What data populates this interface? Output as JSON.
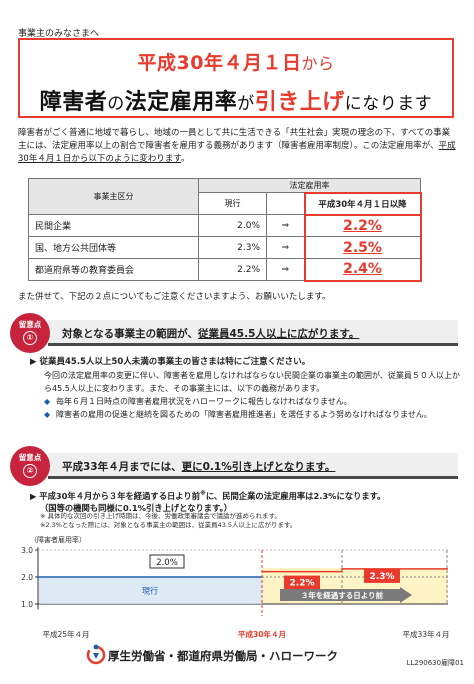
{
  "greeting": "事業主のみなさまへ",
  "title": {
    "line1_bold": "平成30年４月１日",
    "line1_rest": "から",
    "line2_a": "障害者",
    "line2_b": "の",
    "line2_c": "法定雇用率",
    "line2_d": "が",
    "line2_e": "引き上げ",
    "line2_f": "になります"
  },
  "intro": {
    "text1": "障害者がごく普通に地域で暮らし、地域の一員として共に生活できる「共生社会」実現の理念の下、すべての事業主には、法定雇用率以上の割合で障害者を雇用する義務があります（障害者雇用率制度）。この法定雇用率が、",
    "text_underlined": "平成30年４月１日から以下のように変わります",
    "text_end": "。"
  },
  "table": {
    "header_category": "事業主区分",
    "header_rate": "法定雇用率",
    "header_current": "現行",
    "header_new": "平成30年４月１日以降",
    "arrow": "⇒",
    "rows": [
      {
        "category": "民間企業",
        "current": "2.0%",
        "new": "2.2%"
      },
      {
        "category": "国、地方公共団体等",
        "current": "2.3%",
        "new": "2.5%"
      },
      {
        "category": "都道府県等の教育委員会",
        "current": "2.2%",
        "new": "2.4%"
      }
    ]
  },
  "also_text": "また併せて、下記の２点についてもご注意くださいますよう、お願いいたします。",
  "point_label": "留意点",
  "point1": {
    "num": "①",
    "heading_a": "対象となる事業主の範囲が、",
    "heading_b": "従業員45.5人以上に広がります。",
    "sub": "従業員45.5人以上50人未満の事業主の皆さまは特にご注意ください。",
    "body1": "今回の法定雇用率の変更に伴い、障害者を雇用しなければならない民間企業の事業主の範囲が、従業員５０人以上から45.5人以上に変わります。また、その事業主には、以下の義務があります。",
    "bullet1": "毎年６月１日時点の障害者雇用状況をハローワークに報告しなければなりません。",
    "bullet2": "障害者の雇用の促進と継続を図るための「障害者雇用推進者」を選任するよう努めなければなりません。"
  },
  "point2": {
    "num": "②",
    "heading_a": "平成33年４月までには、",
    "heading_b": "更に0.1%引き上げとなります。",
    "sub1": "平成30年４月から３年を経過する日より前",
    "sub1_note": "※",
    "sub2": "に、民間企業の法定雇用率は2.3%になります。",
    "sub3": "（国等の機関も同様に0.1%引き上げとなります。）",
    "note1": "※ 具体的な次回の引き上げ時期は、今後、労働政策審議会で議論が進められます。",
    "note2": "※2.3%となった際には、対象となる事業主の範囲は、従業員43.5人以上に広がります。"
  },
  "chart_data": {
    "type": "line",
    "ylabel": "（障害者雇用率）",
    "ytick_labels": [
      "3.0",
      "2.0",
      "1.0"
    ],
    "yticks": [
      3.0,
      2.0,
      1.0
    ],
    "ylim": [
      0.8,
      3.1
    ],
    "x_labels": [
      "平成25年４月",
      "平成30年４月",
      "平成33年４月"
    ],
    "series": [
      {
        "name": "現行",
        "values": [
          2.0,
          2.0
        ]
      },
      {
        "name": "",
        "values": [
          2.2,
          2.2,
          2.3,
          2.3
        ]
      }
    ],
    "data_labels": [
      "2.0%",
      "2.2%",
      "2.3%"
    ],
    "annotation": "３年を経過する日より前"
  },
  "footer": {
    "org": "厚生労働省・都道府県労働局・ハローワーク",
    "code": "LL290630雇障01"
  },
  "colors": {
    "accent_red": "#e83b2e",
    "point_red": "#c8233c",
    "highlight_yellow": "#fdf3c4"
  }
}
